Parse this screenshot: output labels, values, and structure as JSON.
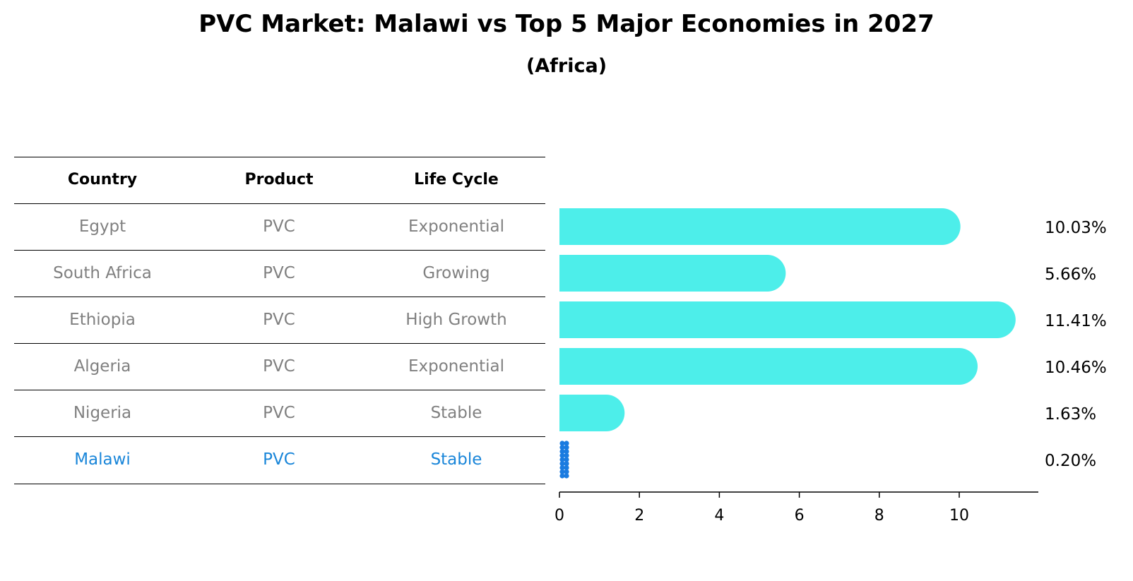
{
  "title": "PVC Market: Malawi vs Top 5 Major Economies in 2027",
  "subtitle": "(Africa)",
  "table": {
    "headers": [
      "Country",
      "Product",
      "Life Cycle"
    ],
    "rows": [
      [
        "Egypt",
        "PVC",
        "Exponential"
      ],
      [
        "South Africa",
        "PVC",
        "Growing"
      ],
      [
        "Ethiopia",
        "PVC",
        "High Growth"
      ],
      [
        "Algeria",
        "PVC",
        "Exponential"
      ],
      [
        "Nigeria",
        "PVC",
        "Stable"
      ],
      [
        "Malawi",
        "PVC",
        "Stable"
      ]
    ]
  },
  "chart_data": {
    "type": "bar",
    "orientation": "horizontal",
    "categories": [
      "Egypt",
      "South Africa",
      "Ethiopia",
      "Algeria",
      "Nigeria",
      "Malawi"
    ],
    "values": [
      10.03,
      5.66,
      11.41,
      10.46,
      1.63,
      0.2
    ],
    "value_labels": [
      "10.03%",
      "5.66%",
      "11.41%",
      "10.46%",
      "1.63%",
      "0.20%"
    ],
    "xlim": [
      0,
      12
    ],
    "xticks": [
      0,
      2,
      4,
      6,
      8,
      10
    ],
    "highlight": "Malawi",
    "colors": {
      "bar": "#4deeea",
      "highlight": "#1a7be0"
    }
  }
}
